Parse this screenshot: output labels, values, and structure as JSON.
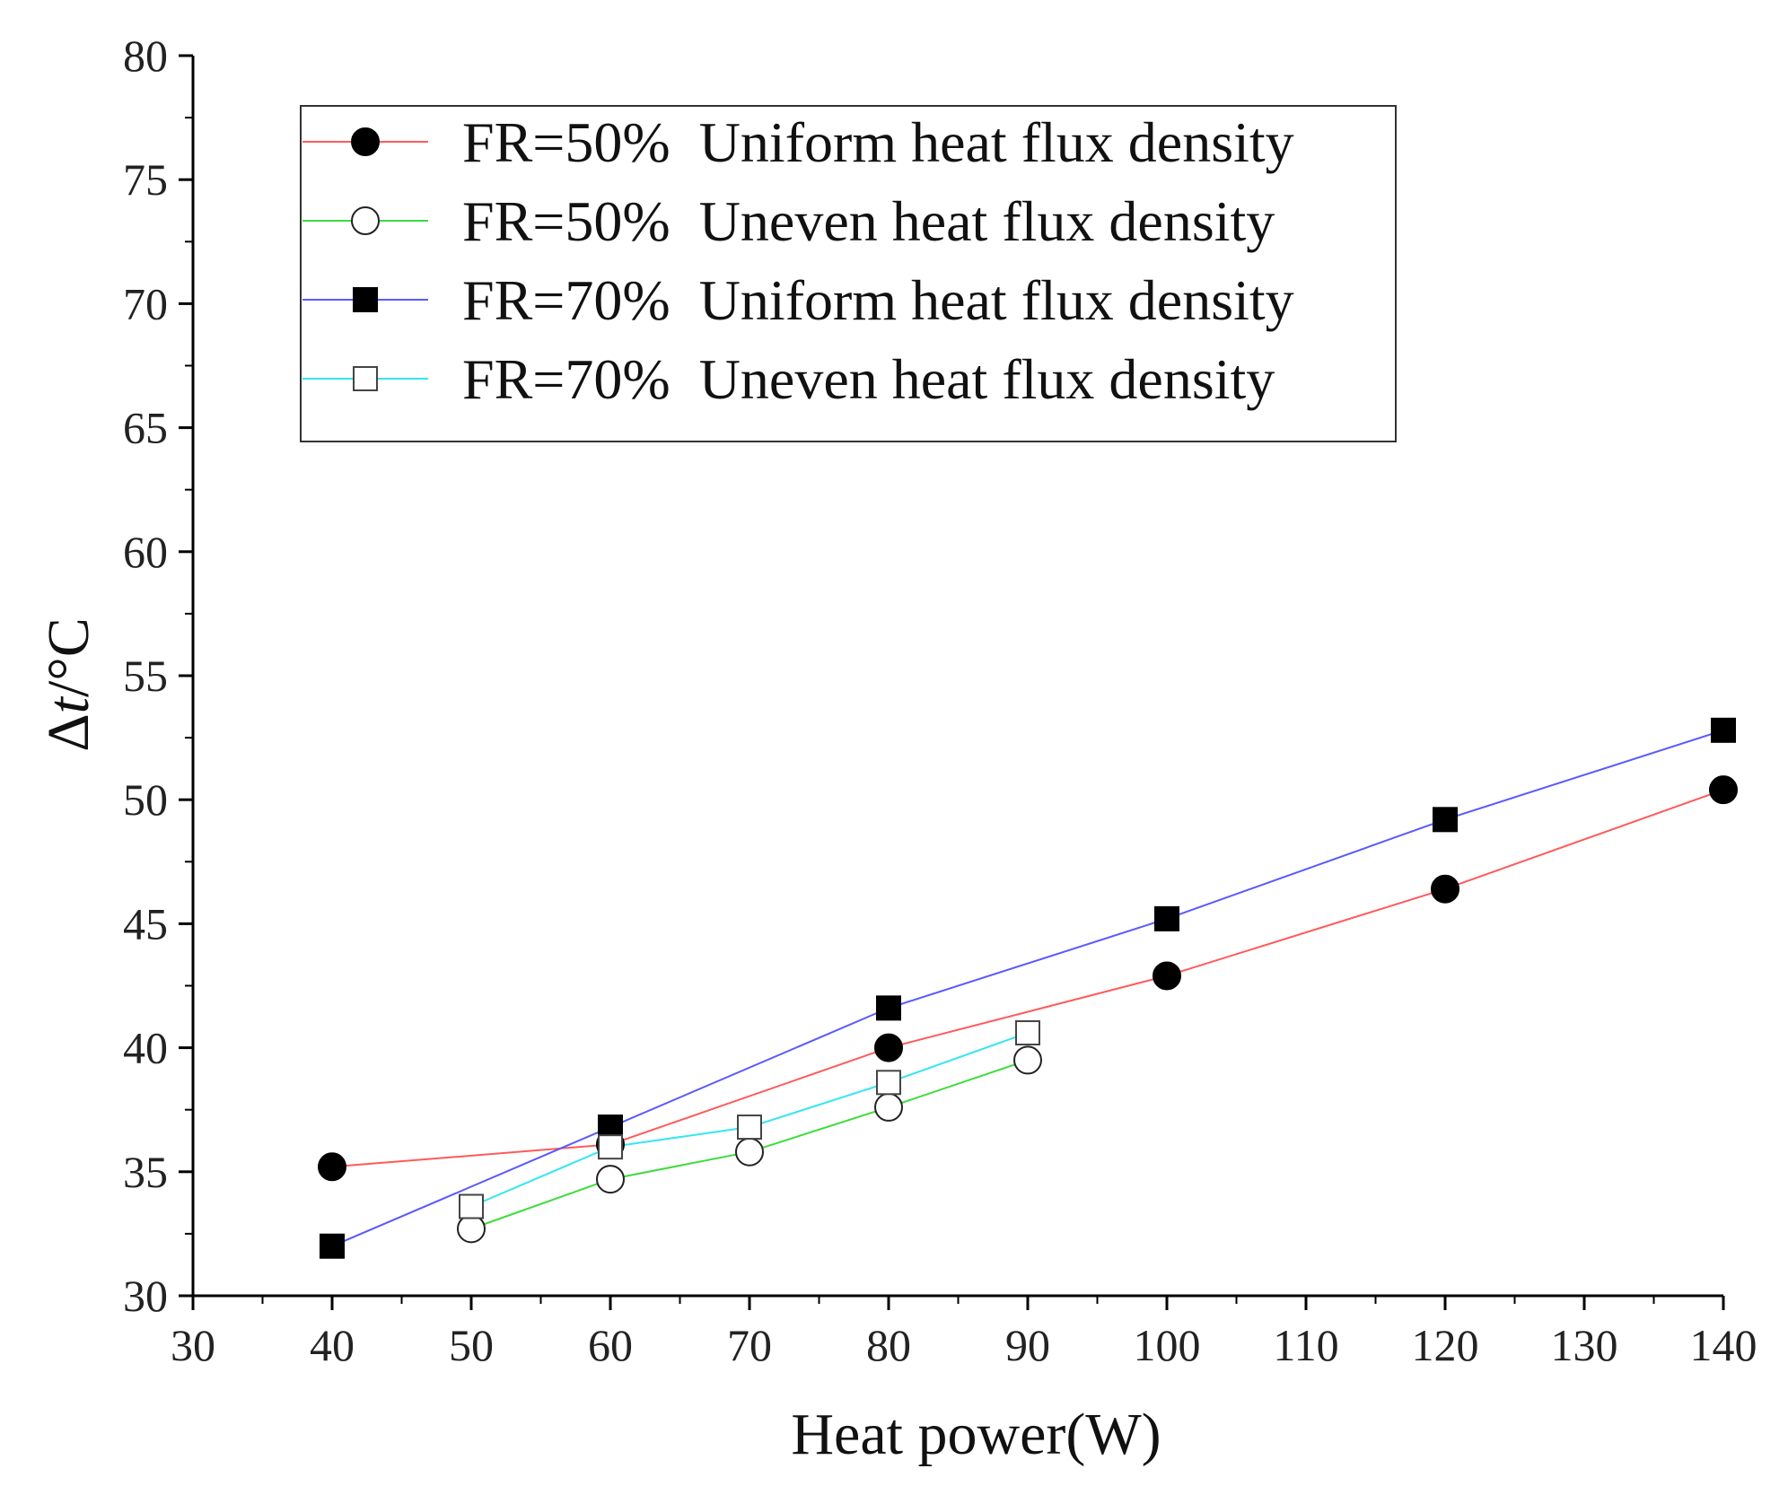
{
  "chart_data": {
    "type": "line",
    "title": "",
    "xlabel": "Heat power(W)",
    "ylabel_main": "Δ",
    "ylabel_italic": "t",
    "ylabel_unit": "/°C",
    "xlim": [
      30,
      140
    ],
    "ylim": [
      30,
      80
    ],
    "xticks": [
      "30",
      "40",
      "50",
      "60",
      "70",
      "80",
      "90",
      "100",
      "110",
      "120",
      "130",
      "140"
    ],
    "yticks": [
      "30",
      "35",
      "40",
      "45",
      "50",
      "55",
      "60",
      "65",
      "70",
      "75",
      "80"
    ],
    "grid": false,
    "legend_position": "top-left",
    "series": [
      {
        "name": "FR=50%  Uniform heat flux density",
        "color": "#ff5a5a",
        "marker": "circle-filled",
        "x": [
          40,
          60,
          80,
          100,
          120,
          140
        ],
        "y": [
          35.2,
          36.1,
          40.0,
          42.9,
          46.4,
          50.4
        ]
      },
      {
        "name": "FR=50%  Uneven heat flux density",
        "color": "#3ddc3d",
        "marker": "circle-open",
        "x": [
          50,
          60,
          70,
          80,
          90
        ],
        "y": [
          32.7,
          34.7,
          35.8,
          37.6,
          39.5
        ]
      },
      {
        "name": "FR=70%  Uniform heat flux density",
        "color": "#5a5aff",
        "marker": "square-filled",
        "x": [
          40,
          60,
          80,
          100,
          120,
          140
        ],
        "y": [
          32.0,
          36.8,
          41.6,
          45.2,
          49.2,
          52.8
        ]
      },
      {
        "name": "FR=70%  Uneven heat flux density",
        "color": "#33e6f0",
        "marker": "square-open",
        "x": [
          50,
          60,
          70,
          80,
          90
        ],
        "y": [
          33.6,
          36.0,
          36.8,
          38.6,
          40.6
        ]
      }
    ]
  }
}
